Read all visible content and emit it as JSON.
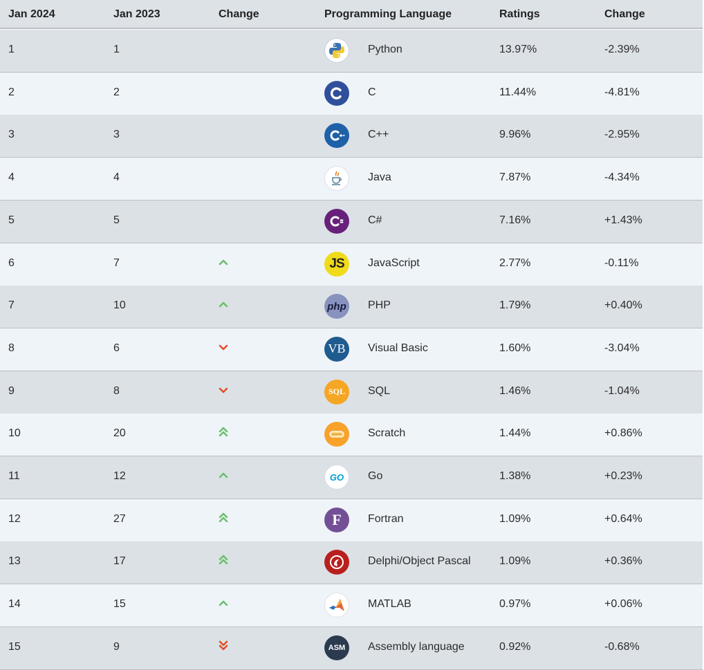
{
  "headers": {
    "jan2024": "Jan 2024",
    "jan2023": "Jan 2023",
    "change": "Change",
    "language": "Programming Language",
    "ratings": "Ratings",
    "change2": "Change"
  },
  "colors": {
    "up": "#6bbf6b",
    "down": "#e2502a",
    "row_odd": "#dce1e6",
    "row_even": "#eff4f9"
  },
  "rows": [
    {
      "rank": "1",
      "prev": "1",
      "trend": "none",
      "icon": "python-logo-icon",
      "name": "Python",
      "rating": "13.97%",
      "delta": "-2.39%"
    },
    {
      "rank": "2",
      "prev": "2",
      "trend": "none",
      "icon": "c-logo-icon",
      "name": "C",
      "rating": "11.44%",
      "delta": "-4.81%"
    },
    {
      "rank": "3",
      "prev": "3",
      "trend": "none",
      "icon": "cpp-logo-icon",
      "name": "C++",
      "rating": "9.96%",
      "delta": "-2.95%"
    },
    {
      "rank": "4",
      "prev": "4",
      "trend": "none",
      "icon": "java-logo-icon",
      "name": "Java",
      "rating": "7.87%",
      "delta": "-4.34%"
    },
    {
      "rank": "5",
      "prev": "5",
      "trend": "none",
      "icon": "csharp-logo-icon",
      "name": "C#",
      "rating": "7.16%",
      "delta": "+1.43%"
    },
    {
      "rank": "6",
      "prev": "7",
      "trend": "up",
      "icon": "javascript-logo-icon",
      "name": "JavaScript",
      "rating": "2.77%",
      "delta": "-0.11%"
    },
    {
      "rank": "7",
      "prev": "10",
      "trend": "up",
      "icon": "php-logo-icon",
      "name": "PHP",
      "rating": "1.79%",
      "delta": "+0.40%"
    },
    {
      "rank": "8",
      "prev": "6",
      "trend": "down",
      "icon": "visual-basic-logo-icon",
      "name": "Visual Basic",
      "rating": "1.60%",
      "delta": "-3.04%"
    },
    {
      "rank": "9",
      "prev": "8",
      "trend": "down",
      "icon": "sql-logo-icon",
      "name": "SQL",
      "rating": "1.46%",
      "delta": "-1.04%"
    },
    {
      "rank": "10",
      "prev": "20",
      "trend": "up2",
      "icon": "scratch-logo-icon",
      "name": "Scratch",
      "rating": "1.44%",
      "delta": "+0.86%"
    },
    {
      "rank": "11",
      "prev": "12",
      "trend": "up",
      "icon": "go-logo-icon",
      "name": "Go",
      "rating": "1.38%",
      "delta": "+0.23%"
    },
    {
      "rank": "12",
      "prev": "27",
      "trend": "up2",
      "icon": "fortran-logo-icon",
      "name": "Fortran",
      "rating": "1.09%",
      "delta": "+0.64%"
    },
    {
      "rank": "13",
      "prev": "17",
      "trend": "up2",
      "icon": "delphi-logo-icon",
      "name": "Delphi/Object Pascal",
      "rating": "1.09%",
      "delta": "+0.36%"
    },
    {
      "rank": "14",
      "prev": "15",
      "trend": "up",
      "icon": "matlab-logo-icon",
      "name": "MATLAB",
      "rating": "0.97%",
      "delta": "+0.06%"
    },
    {
      "rank": "15",
      "prev": "9",
      "trend": "down2",
      "icon": "assembly-logo-icon",
      "name": "Assembly language",
      "rating": "0.92%",
      "delta": "-0.68%"
    }
  ],
  "logo_text": {
    "javascript": "JS",
    "php": "php",
    "visual_basic": "VB",
    "sql": "SQL",
    "go": "GO",
    "fortran": "F",
    "assembly": "ASM"
  }
}
